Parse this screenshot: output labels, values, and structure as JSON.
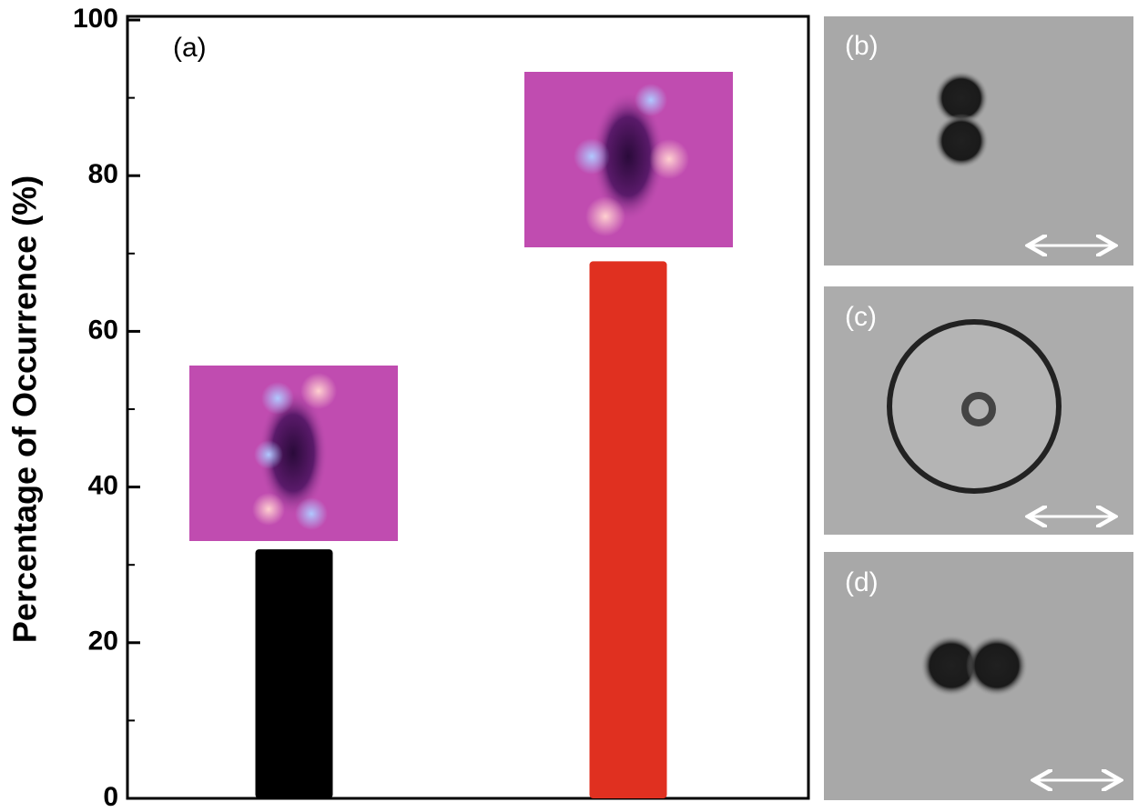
{
  "chart_data": {
    "type": "bar",
    "annotation": "(a)",
    "ylabel": "Percentage of Occurrence (%)",
    "categories": [
      null,
      null
    ],
    "values": [
      32,
      69
    ],
    "colors": [
      "#000000",
      "#e03020"
    ],
    "ylim": [
      0,
      100
    ],
    "yticks": [
      0,
      20,
      40,
      60,
      80,
      100
    ],
    "yminorticks": [
      10,
      30,
      50,
      70,
      90
    ]
  },
  "panels": [
    "(b)",
    "(c)",
    "(d)"
  ]
}
